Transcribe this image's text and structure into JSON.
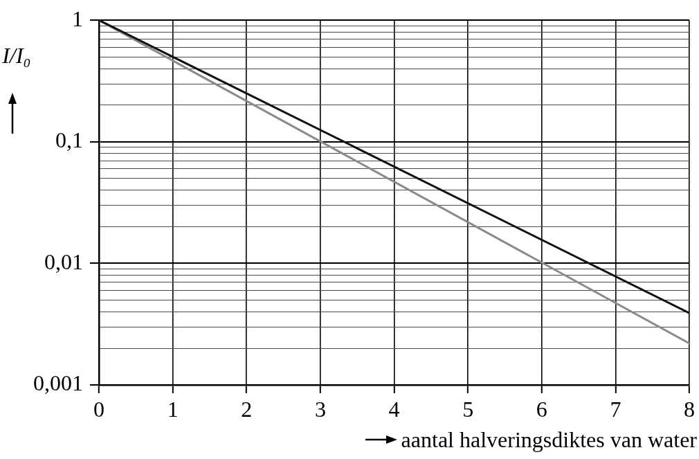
{
  "chart_data": {
    "type": "line",
    "xlabel": "aantal halveringsdiktes van water",
    "ylabel": "I/I₀",
    "x": [
      0,
      8
    ],
    "series": [
      {
        "color": "#111111",
        "values": [
          1,
          0.0039
        ]
      },
      {
        "color": "#8a8a8a",
        "values": [
          1,
          0.0022
        ]
      }
    ],
    "xlim": [
      0,
      8
    ],
    "xticks": [
      0,
      1,
      2,
      3,
      4,
      5,
      6,
      7,
      8
    ],
    "ylim": [
      0.001,
      1
    ],
    "yticks": [
      {
        "value": 0.001,
        "label": "0,001"
      },
      {
        "value": 0.002,
        "label": null
      },
      {
        "value": 0.003,
        "label": null
      },
      {
        "value": 0.004,
        "label": null
      },
      {
        "value": 0.005,
        "label": null
      },
      {
        "value": 0.006,
        "label": null
      },
      {
        "value": 0.007,
        "label": null
      },
      {
        "value": 0.008,
        "label": null
      },
      {
        "value": 0.009,
        "label": null
      },
      {
        "value": 0.01,
        "label": "0,01"
      },
      {
        "value": 0.02,
        "label": null
      },
      {
        "value": 0.03,
        "label": null
      },
      {
        "value": 0.04,
        "label": null
      },
      {
        "value": 0.05,
        "label": null
      },
      {
        "value": 0.06,
        "label": null
      },
      {
        "value": 0.07,
        "label": null
      },
      {
        "value": 0.08,
        "label": null
      },
      {
        "value": 0.09,
        "label": null
      },
      {
        "value": 0.1,
        "label": "0,1"
      },
      {
        "value": 0.2,
        "label": null
      },
      {
        "value": 0.3,
        "label": null
      },
      {
        "value": 0.4,
        "label": null
      },
      {
        "value": 0.5,
        "label": null
      },
      {
        "value": 0.6,
        "label": null
      },
      {
        "value": 0.7,
        "label": null
      },
      {
        "value": 0.8,
        "label": null
      },
      {
        "value": 0.9,
        "label": null
      },
      1
    ],
    "log": true,
    "grid": true,
    "legend": false,
    "marker": "none",
    "line_style": "solid"
  }
}
